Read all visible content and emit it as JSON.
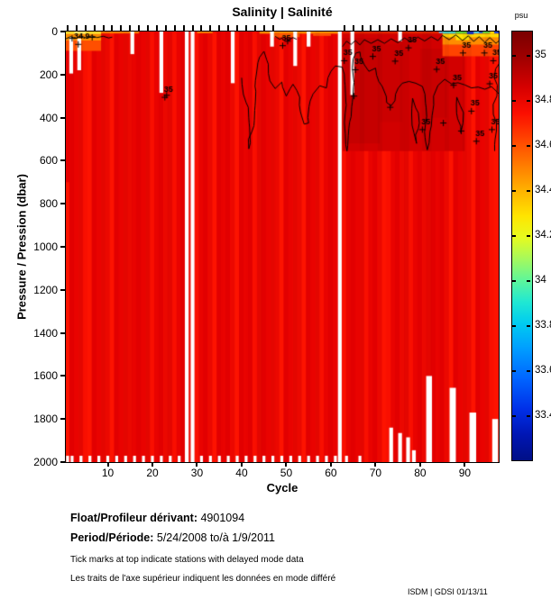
{
  "figure": {
    "background": "#ffffff"
  },
  "footer": {
    "float_label": "Float/Profileur dérivant:",
    "float_value": "4901094",
    "period_label": "Period/Période:",
    "period_value": "5/24/2008 to/à 1/9/2011",
    "note_en": "Tick marks at top indicate stations with delayed mode data",
    "note_fr": "Les traits de l'axe supérieur indiquent les données en mode différé",
    "credit": "ISDM | GDSI 01/13/11"
  },
  "chart_data": {
    "type": "heatmap",
    "title": "Salinity | Salinité",
    "xlabel": "Cycle",
    "ylabel": "Pressure / Pression (dbar)",
    "unit": "psu",
    "x_range": [
      1,
      97
    ],
    "y_range": [
      0,
      2000
    ],
    "x_ticks": [
      10,
      20,
      30,
      40,
      50,
      60,
      70,
      80,
      90
    ],
    "y_ticks": [
      0,
      200,
      400,
      600,
      800,
      1000,
      1200,
      1400,
      1600,
      1800,
      2000
    ],
    "value_range": [
      33.2,
      35.1
    ],
    "colormap": "jet",
    "colorbar_top_value": 35.11,
    "colorbar_bottom_value": 33.21,
    "colorbar_ticks": [
      {
        "v": 35.0,
        "label": "35"
      },
      {
        "v": 34.8,
        "label": "34.8"
      },
      {
        "v": 34.6,
        "label": "34.6"
      },
      {
        "v": 34.4,
        "label": "34.4"
      },
      {
        "v": 34.2,
        "label": "34.2"
      },
      {
        "v": 34.0,
        "label": "34"
      },
      {
        "v": 33.8,
        "label": "33.8"
      },
      {
        "v": 33.6,
        "label": "33.6"
      },
      {
        "v": 33.4,
        "label": "33.4"
      }
    ],
    "colormap_stops": [
      [
        0.0,
        "#7a0000"
      ],
      [
        0.06,
        "#9f0000"
      ],
      [
        0.13,
        "#d60000"
      ],
      [
        0.19,
        "#fb0e00"
      ],
      [
        0.25,
        "#ff4300"
      ],
      [
        0.31,
        "#ff7a00"
      ],
      [
        0.37,
        "#ffb100"
      ],
      [
        0.43,
        "#ffe400"
      ],
      [
        0.48,
        "#e7fb1e"
      ],
      [
        0.53,
        "#a6f95c"
      ],
      [
        0.58,
        "#5ef69a"
      ],
      [
        0.63,
        "#21e8d2"
      ],
      [
        0.68,
        "#00ccf0"
      ],
      [
        0.74,
        "#009dff"
      ],
      [
        0.81,
        "#0064ff"
      ],
      [
        0.88,
        "#0030e8"
      ],
      [
        0.94,
        "#0016b4"
      ],
      [
        1.0,
        "#000f86"
      ]
    ],
    "base_shades": [
      "#f50900",
      "#e90300",
      "#fd1300",
      "#ee0700",
      "#e20000",
      "#f90f00"
    ],
    "column_tint": "rgba(60,0,0,0.05)",
    "surface_features": [
      {
        "c1": 62.6,
        "c2": 90.0,
        "p1": 0,
        "p2": 555,
        "color": "#d20000"
      },
      {
        "c1": 62.6,
        "c2": 71.0,
        "p1": 30,
        "p2": 520,
        "color": "#c60000"
      },
      {
        "c1": 71.0,
        "c2": 76.0,
        "p1": 60,
        "p2": 420,
        "color": "#cb0000"
      },
      {
        "c1": 80.0,
        "c2": 86.0,
        "p1": 80,
        "p2": 400,
        "color": "#c90000"
      },
      {
        "c1": 0.6,
        "c2": 8.5,
        "p1": 0,
        "p2": 14,
        "color": "#ffd42a"
      },
      {
        "c1": 0.6,
        "c2": 8.5,
        "p1": 14,
        "p2": 42,
        "color": "#ff9300"
      },
      {
        "c1": 0.6,
        "c2": 8.5,
        "p1": 42,
        "p2": 90,
        "color": "#ff4f00"
      },
      {
        "c1": 2.5,
        "c2": 5.0,
        "p1": 0,
        "p2": 10,
        "color": "#ffe96a"
      },
      {
        "c1": 8.5,
        "c2": 17.0,
        "p1": 0,
        "p2": 9,
        "color": "#ff7b00"
      },
      {
        "c1": 30.0,
        "c2": 33.5,
        "p1": 0,
        "p2": 8,
        "color": "#ff7b00"
      },
      {
        "c1": 44.0,
        "c2": 62.0,
        "p1": 0,
        "p2": 10,
        "color": "#ff8c00"
      },
      {
        "c1": 47.0,
        "c2": 53.0,
        "p1": 10,
        "p2": 26,
        "color": "#ff5a00"
      },
      {
        "c1": 56.0,
        "c2": 60.0,
        "p1": 10,
        "p2": 20,
        "color": "#ff5a00"
      },
      {
        "c1": 62.6,
        "c2": 85.0,
        "p1": 0,
        "p2": 10,
        "color": "#dd2500"
      },
      {
        "c1": 85.0,
        "c2": 97.7,
        "p1": 28,
        "p2": 62,
        "color": "#ff8c00"
      },
      {
        "c1": 85.0,
        "c2": 97.7,
        "p1": 10,
        "p2": 28,
        "color": "#ffd800"
      },
      {
        "c1": 85.0,
        "c2": 97.7,
        "p1": 62,
        "p2": 115,
        "color": "#ff4300"
      },
      {
        "c1": 85.0,
        "c2": 88.0,
        "p1": 0,
        "p2": 10,
        "color": "#43c9c0"
      },
      {
        "c1": 88.0,
        "c2": 90.5,
        "p1": 0,
        "p2": 10,
        "color": "#5ad23c"
      },
      {
        "c1": 90.5,
        "c2": 92.0,
        "p1": 0,
        "p2": 13,
        "color": "#1733c0"
      },
      {
        "c1": 92.0,
        "c2": 94.0,
        "p1": 0,
        "p2": 9,
        "color": "#49cce2"
      },
      {
        "c1": 94.0,
        "c2": 95.7,
        "p1": 0,
        "p2": 9,
        "color": "#64d23e"
      },
      {
        "c1": 95.7,
        "c2": 97.7,
        "p1": 0,
        "p2": 11,
        "color": "#ffd800"
      },
      {
        "c1": 88.0,
        "c2": 91.0,
        "p1": 13,
        "p2": 40,
        "color": "#ffe400"
      },
      {
        "c1": 96.6,
        "c2": 97.7,
        "p1": 0,
        "p2": 9,
        "color": "#1f41cf"
      },
      {
        "c1": 84.2,
        "c2": 85.0,
        "p1": 0,
        "p2": 7,
        "color": "#57b8f0"
      },
      {
        "c1": 93.2,
        "c2": 94.0,
        "p1": 0,
        "p2": 6,
        "color": "#0f2da0"
      },
      {
        "c1": 0.6,
        "c2": 1.6,
        "p1": 90,
        "p2": 700,
        "color": "#e60000"
      }
    ],
    "missing_profiles": [
      {
        "c": 27.7
      },
      {
        "c": 29.0
      },
      {
        "c": 62.0
      }
    ],
    "missing_segments": [
      {
        "c": 1.8,
        "p1": 25,
        "p2": 195
      },
      {
        "c": 3.6,
        "p1": 33,
        "p2": 180
      },
      {
        "c": 15.5,
        "p1": 0,
        "p2": 105
      },
      {
        "c": 22.0,
        "p1": 0,
        "p2": 285
      },
      {
        "c": 38.0,
        "p1": 0,
        "p2": 240
      },
      {
        "c": 46.8,
        "p1": 0,
        "p2": 70
      },
      {
        "c": 52.0,
        "p1": 0,
        "p2": 160
      },
      {
        "c": 55.0,
        "p1": 0,
        "p2": 70
      },
      {
        "c": 64.8,
        "p1": 0,
        "p2": 295
      },
      {
        "c": 75.5,
        "p1": 0,
        "p2": 45
      },
      {
        "c": 73.5,
        "p1": 1840,
        "p2": 2000
      },
      {
        "c": 75.5,
        "p1": 1865,
        "p2": 2000
      },
      {
        "c": 77.3,
        "p1": 1885,
        "p2": 2000
      },
      {
        "c": 78.6,
        "p1": 1945,
        "p2": 2000
      },
      {
        "c": 82.0,
        "p1": 1600,
        "p2": 2000,
        "w": 1.3
      },
      {
        "c": 87.3,
        "p1": 1655,
        "p2": 2000,
        "w": 1.4
      },
      {
        "c": 91.8,
        "p1": 1770,
        "p2": 2000,
        "w": 1.5
      },
      {
        "c": 96.8,
        "p1": 1800,
        "p2": 2000,
        "w": 1.3
      }
    ],
    "bottom_gaps": [
      1,
      2,
      4,
      6,
      8,
      10,
      12,
      14,
      16,
      18,
      20,
      22,
      24,
      26,
      31,
      33,
      35,
      37,
      39,
      41,
      43,
      45,
      47,
      49,
      51,
      53,
      55,
      57,
      59,
      61,
      63.5,
      66.5
    ],
    "delayed_mode_tick_cycles": [
      1,
      3,
      5,
      7,
      9,
      11,
      13,
      15,
      17,
      19,
      21,
      23,
      25,
      27,
      29,
      31,
      33,
      35,
      37,
      39,
      41,
      43,
      45,
      47,
      63,
      65,
      67,
      69,
      71,
      73,
      75,
      77,
      79,
      81,
      83,
      85,
      87,
      89,
      91,
      93,
      95,
      97
    ],
    "contours": [
      {
        "points": [
          [
            40,
            215
          ],
          [
            41,
            330
          ],
          [
            41.6,
            545
          ],
          [
            42.3,
            465
          ],
          [
            43,
            255
          ],
          [
            44,
            120
          ],
          [
            45,
            92
          ],
          [
            46,
            195
          ],
          [
            47.5,
            265
          ],
          [
            49,
            235
          ],
          [
            50,
            300
          ],
          [
            51.5,
            245
          ],
          [
            53,
            305
          ],
          [
            54,
            430
          ],
          [
            55,
            425
          ],
          [
            56,
            290
          ],
          [
            57.5,
            252
          ],
          [
            59,
            262
          ],
          [
            60,
            185
          ],
          [
            61,
            160
          ],
          [
            62.5,
            165
          ],
          [
            63.2,
            380
          ],
          [
            63.6,
            555
          ],
          [
            64.2,
            420
          ],
          [
            65,
            205
          ],
          [
            65.6,
            100
          ],
          [
            66.5,
            95
          ],
          [
            67.5,
            155
          ],
          [
            68.5,
            185
          ],
          [
            70,
            170
          ],
          [
            71.5,
            255
          ],
          [
            72.5,
            330
          ],
          [
            73.5,
            345
          ],
          [
            74.5,
            290
          ],
          [
            76,
            240
          ],
          [
            77.5,
            232
          ],
          [
            79,
            240
          ],
          [
            80.5,
            255
          ],
          [
            81.2,
            430
          ],
          [
            81.6,
            550
          ],
          [
            82.2,
            465
          ],
          [
            83,
            300
          ],
          [
            84,
            250
          ],
          [
            85.5,
            222
          ],
          [
            87,
            243
          ],
          [
            88.5,
            238
          ],
          [
            90,
            248
          ],
          [
            91.5,
            262
          ],
          [
            93,
            258
          ],
          [
            94.5,
            268
          ],
          [
            96,
            256
          ],
          [
            97.7,
            290
          ]
        ]
      },
      {
        "points": [
          [
            62.6,
            70
          ],
          [
            63.5,
            45
          ],
          [
            64.5,
            60
          ],
          [
            65.5,
            42
          ],
          [
            66.5,
            62
          ],
          [
            67.5,
            38
          ],
          [
            69,
            55
          ],
          [
            70.5,
            38
          ],
          [
            72,
            55
          ],
          [
            73.5,
            34
          ],
          [
            75,
            52
          ],
          [
            76.5,
            30
          ],
          [
            78,
            48
          ],
          [
            79.5,
            26
          ],
          [
            81,
            44
          ],
          [
            82.5,
            24
          ],
          [
            84,
            42
          ],
          [
            85,
            18
          ],
          [
            86.5,
            38
          ],
          [
            88,
            16
          ],
          [
            89.5,
            42
          ],
          [
            90.8,
            20
          ],
          [
            92,
            46
          ],
          [
            93.2,
            24
          ],
          [
            94.5,
            50
          ],
          [
            95.6,
            28
          ],
          [
            97,
            55
          ],
          [
            97.7,
            42
          ]
        ]
      },
      {
        "points": [
          [
            78.3,
            310
          ],
          [
            79,
            355
          ],
          [
            79.6,
            450
          ],
          [
            79.2,
            520
          ],
          [
            78.6,
            470
          ],
          [
            78.1,
            385
          ],
          [
            78.3,
            310
          ]
        ]
      },
      {
        "points": [
          [
            88.2,
            305
          ],
          [
            89,
            345
          ],
          [
            89.6,
            425
          ],
          [
            89.1,
            470
          ],
          [
            88.4,
            405
          ],
          [
            88.2,
            305
          ]
        ]
      },
      {
        "points": [
          [
            0.6,
            34
          ],
          [
            1.6,
            24
          ],
          [
            2.8,
            32
          ],
          [
            4,
            21
          ],
          [
            5.2,
            30
          ],
          [
            6.4,
            20
          ],
          [
            7.6,
            28
          ],
          [
            9,
            22
          ],
          [
            10.2,
            30
          ],
          [
            11,
            26
          ]
        ]
      },
      {
        "points": [
          [
            47.5,
            22
          ],
          [
            48.5,
            36
          ],
          [
            49.5,
            26
          ],
          [
            50.5,
            40
          ],
          [
            51.5,
            28
          ],
          [
            52.3,
            36
          ]
        ]
      },
      {
        "points": [
          [
            97.7,
            150
          ],
          [
            96.6,
            215
          ],
          [
            97.2,
            300
          ],
          [
            96.4,
            385
          ],
          [
            97.1,
            460
          ],
          [
            96.7,
            555
          ]
        ]
      }
    ],
    "contour_labels": [
      {
        "c": 4.2,
        "p": 22,
        "t": "34.9"
      },
      {
        "c": 23.6,
        "p": 268,
        "t": "35"
      },
      {
        "c": 50.0,
        "p": 28,
        "t": "35"
      },
      {
        "c": 63.8,
        "p": 98,
        "t": "35"
      },
      {
        "c": 66.3,
        "p": 140,
        "t": "35"
      },
      {
        "c": 70.2,
        "p": 78,
        "t": "35"
      },
      {
        "c": 75.2,
        "p": 100,
        "t": "35"
      },
      {
        "c": 78.2,
        "p": 38,
        "t": "35"
      },
      {
        "c": 81.3,
        "p": 418,
        "t": "35"
      },
      {
        "c": 84.5,
        "p": 138,
        "t": "35"
      },
      {
        "c": 88.3,
        "p": 212,
        "t": "35"
      },
      {
        "c": 90.4,
        "p": 62,
        "t": "35"
      },
      {
        "c": 92.3,
        "p": 332,
        "t": "35"
      },
      {
        "c": 95.2,
        "p": 62,
        "t": "35"
      },
      {
        "c": 96.4,
        "p": 205,
        "t": "35"
      },
      {
        "c": 93.4,
        "p": 472,
        "t": "35"
      },
      {
        "c": 97.2,
        "p": 98,
        "t": "35"
      },
      {
        "c": 96.9,
        "p": 418,
        "t": "35"
      }
    ],
    "extra_plus_marks": [
      [
        2,
        32
      ],
      [
        6.5,
        27
      ],
      [
        23.2,
        296
      ],
      [
        65.2,
        300
      ],
      [
        73.3,
        352
      ],
      [
        85.2,
        425
      ],
      [
        89.2,
        462
      ],
      [
        50.3,
        45
      ]
    ],
    "description": "Argo float salinity section vs cycle and pressure: field is mostly 34.8-35 psu (red); fresher/warmer surface layer (yellow-green-cyan, ~33.5-34.5 psu) in the top ~100 dbar at the start of the record and after cycle ~85; black 35-psu isohaline contours meander through the right half above ~600 dbar; white columns are missing or partial profiles (cycles ~28, 29, 62 fully missing)."
  }
}
